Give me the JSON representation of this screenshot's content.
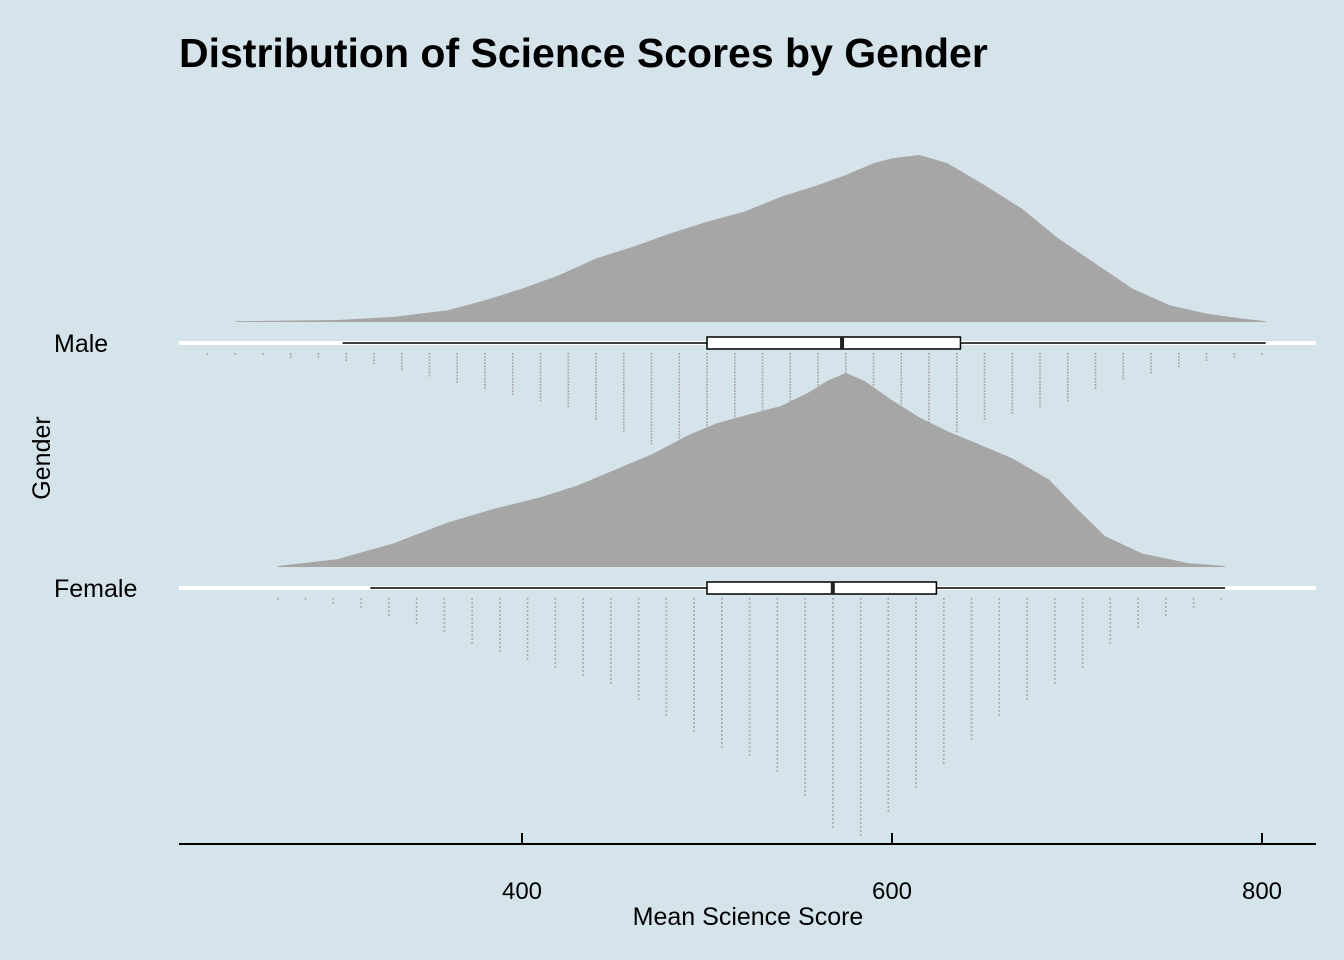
{
  "chart_data": {
    "type": "raincloud",
    "title": "Distribution of Science Scores by Gender",
    "xlabel": "Mean Science Score",
    "ylabel": "Gender",
    "xlim": [
      220,
      830
    ],
    "xticks": [
      400,
      600,
      800
    ],
    "grid": false,
    "colors": {
      "background": "#d5e4eb",
      "density_fill": "#a6a6a6",
      "dots": "#a6a6a6",
      "box_fill": "#ffffff",
      "baseline": "#ffffff",
      "axis": "#000000"
    },
    "series": [
      {
        "name": "Male",
        "box": {
          "min": 303,
          "q1": 500,
          "median": 573,
          "q3": 637,
          "max": 802
        },
        "density": {
          "x": [
            245,
            300,
            330,
            360,
            380,
            400,
            420,
            440,
            460,
            480,
            500,
            520,
            540,
            560,
            575,
            590,
            600,
            615,
            630,
            650,
            670,
            690,
            710,
            730,
            750,
            770,
            790,
            802
          ],
          "y": [
            0.005,
            0.012,
            0.03,
            0.07,
            0.13,
            0.2,
            0.28,
            0.38,
            0.45,
            0.53,
            0.6,
            0.66,
            0.75,
            0.82,
            0.88,
            0.95,
            0.98,
            1.0,
            0.95,
            0.82,
            0.68,
            0.5,
            0.35,
            0.2,
            0.1,
            0.05,
            0.02,
            0.005
          ]
        },
        "dotplot": {
          "x": [
            230,
            245,
            260,
            275,
            290,
            305,
            320,
            335,
            350,
            365,
            380,
            395,
            410,
            425,
            440,
            455,
            470,
            485,
            500,
            515,
            530,
            545,
            560,
            575,
            590,
            605,
            620,
            635,
            650,
            665,
            680,
            695,
            710,
            725,
            740,
            755,
            770,
            785,
            800
          ],
          "count": [
            1,
            1,
            1,
            2,
            2,
            3,
            4,
            6,
            8,
            10,
            12,
            14,
            16,
            18,
            22,
            26,
            30,
            34,
            28,
            26,
            32,
            34,
            38,
            42,
            40,
            34,
            30,
            26,
            22,
            20,
            18,
            16,
            12,
            9,
            7,
            5,
            3,
            2,
            1
          ]
        }
      },
      {
        "name": "Female",
        "box": {
          "min": 318,
          "q1": 500,
          "median": 568,
          "q3": 624,
          "max": 780
        },
        "density": {
          "x": [
            268,
            300,
            330,
            360,
            385,
            410,
            430,
            450,
            470,
            490,
            505,
            520,
            540,
            555,
            565,
            575,
            585,
            600,
            615,
            630,
            645,
            665,
            685,
            700,
            715,
            735,
            760,
            780
          ],
          "y": [
            0.005,
            0.04,
            0.12,
            0.23,
            0.3,
            0.36,
            0.42,
            0.5,
            0.58,
            0.68,
            0.74,
            0.78,
            0.83,
            0.9,
            0.96,
            1.0,
            0.96,
            0.86,
            0.77,
            0.7,
            0.64,
            0.56,
            0.45,
            0.3,
            0.16,
            0.07,
            0.02,
            0.005
          ]
        },
        "dotplot": {
          "x": [
            268,
            283,
            298,
            313,
            328,
            343,
            358,
            373,
            388,
            403,
            418,
            433,
            448,
            463,
            478,
            493,
            508,
            523,
            538,
            553,
            568,
            583,
            598,
            613,
            628,
            643,
            658,
            673,
            688,
            703,
            718,
            733,
            748,
            763,
            778
          ],
          "count": [
            1,
            1,
            2,
            3,
            5,
            7,
            9,
            12,
            14,
            16,
            18,
            20,
            22,
            26,
            30,
            34,
            38,
            40,
            44,
            50,
            58,
            60,
            54,
            48,
            42,
            36,
            30,
            26,
            22,
            18,
            12,
            8,
            5,
            3,
            1
          ]
        }
      }
    ]
  }
}
